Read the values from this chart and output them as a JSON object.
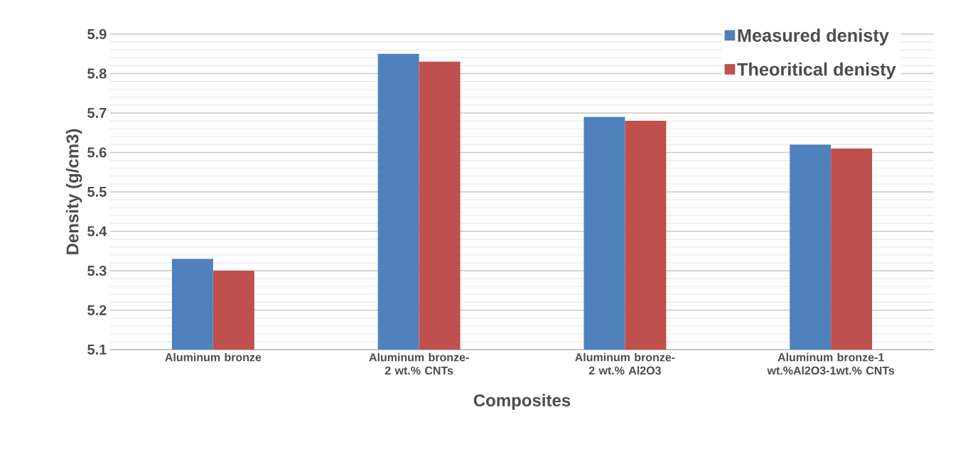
{
  "chart_data": {
    "type": "bar",
    "xlabel": "Composites",
    "ylabel": "Density (g/cm3)",
    "categories": [
      "Aluminum bronze",
      "Aluminum bronze-2 wt.% CNTs",
      "Aluminum bronze-2 wt.% Al2O3",
      "Aluminum bronze-1 wt.%Al2O3-1wt.% CNTs"
    ],
    "series": [
      {
        "name": "Measured  denisty",
        "color": "#4f81bd",
        "values": [
          5.33,
          5.85,
          5.69,
          5.62
        ]
      },
      {
        "name": "Theoritical denisty",
        "color": "#c0504d",
        "values": [
          5.3,
          5.83,
          5.68,
          5.61
        ]
      }
    ],
    "ylim": [
      5.1,
      5.9
    ],
    "yticks": [
      5.1,
      5.2,
      5.3,
      5.4,
      5.5,
      5.6,
      5.7,
      5.8,
      5.9
    ],
    "grid": "y",
    "legend": "top right"
  }
}
